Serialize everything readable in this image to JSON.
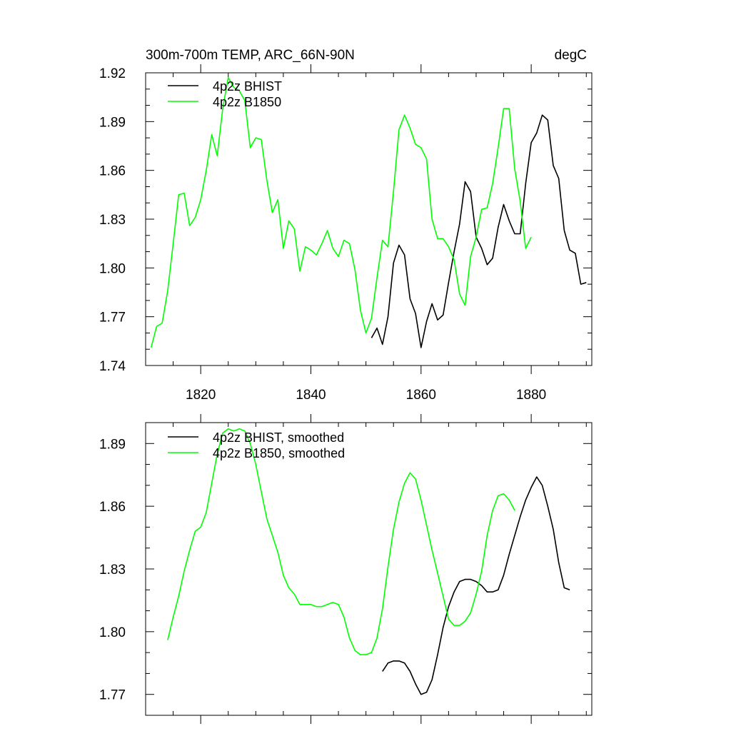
{
  "header": {
    "title": "300m-700m TEMP, ARC_66N-90N",
    "units": "degC"
  },
  "colors": {
    "bhist": "#000000",
    "b1850": "#00ff00",
    "axis": "#000000"
  },
  "chart_data": [
    {
      "type": "line",
      "panel": "top",
      "xlim": [
        1810,
        1891
      ],
      "ylim": [
        1.74,
        1.92
      ],
      "x_ticks": [
        1820,
        1840,
        1860,
        1880
      ],
      "x_tick_labels": [
        "1820",
        "1840",
        "1860",
        "1880"
      ],
      "y_ticks": [
        1.74,
        1.77,
        1.8,
        1.83,
        1.86,
        1.89,
        1.92
      ],
      "y_tick_labels": [
        "1.74",
        "1.77",
        "1.80",
        "1.83",
        "1.86",
        "1.89",
        "1.92"
      ],
      "legend": "top-left",
      "grid": false,
      "series": [
        {
          "name": "4p2z BHIST",
          "color": "#000000",
          "x": [
            1851,
            1852,
            1853,
            1854,
            1855,
            1856,
            1857,
            1858,
            1859,
            1860,
            1861,
            1862,
            1863,
            1864,
            1865,
            1866,
            1867,
            1868,
            1869,
            1870,
            1871,
            1872,
            1873,
            1874,
            1875,
            1876,
            1877,
            1878,
            1879,
            1880,
            1881,
            1882,
            1883,
            1884,
            1885,
            1886,
            1887,
            1888,
            1889,
            1890
          ],
          "y": [
            1.757,
            1.763,
            1.753,
            1.77,
            1.803,
            1.814,
            1.808,
            1.781,
            1.772,
            1.751,
            1.767,
            1.778,
            1.768,
            1.771,
            1.791,
            1.81,
            1.827,
            1.853,
            1.847,
            1.819,
            1.812,
            1.802,
            1.806,
            1.825,
            1.839,
            1.829,
            1.821,
            1.821,
            1.852,
            1.877,
            1.883,
            1.894,
            1.891,
            1.863,
            1.855,
            1.823,
            1.811,
            1.809,
            1.79,
            1.791
          ]
        },
        {
          "name": "4p2z B1850",
          "color": "#00ff00",
          "x": [
            1811,
            1812,
            1813,
            1814,
            1815,
            1816,
            1817,
            1818,
            1819,
            1820,
            1821,
            1822,
            1823,
            1824,
            1825,
            1826,
            1827,
            1828,
            1829,
            1830,
            1831,
            1832,
            1833,
            1834,
            1835,
            1836,
            1837,
            1838,
            1839,
            1840,
            1841,
            1842,
            1843,
            1844,
            1845,
            1846,
            1847,
            1848,
            1849,
            1850,
            1851,
            1852,
            1853,
            1854,
            1855,
            1856,
            1857,
            1858,
            1859,
            1860,
            1861,
            1862,
            1863,
            1864,
            1865,
            1866,
            1867,
            1868,
            1869,
            1870,
            1871,
            1872,
            1873,
            1874,
            1875,
            1876,
            1877,
            1878,
            1879,
            1880
          ],
          "y": [
            1.751,
            1.764,
            1.766,
            1.786,
            1.815,
            1.845,
            1.846,
            1.826,
            1.831,
            1.842,
            1.86,
            1.882,
            1.869,
            1.898,
            1.917,
            1.911,
            1.909,
            1.903,
            1.874,
            1.88,
            1.879,
            1.854,
            1.834,
            1.842,
            1.812,
            1.829,
            1.824,
            1.798,
            1.813,
            1.811,
            1.808,
            1.815,
            1.823,
            1.812,
            1.807,
            1.817,
            1.815,
            1.799,
            1.774,
            1.76,
            1.769,
            1.794,
            1.817,
            1.813,
            1.847,
            1.885,
            1.894,
            1.886,
            1.876,
            1.874,
            1.867,
            1.83,
            1.818,
            1.818,
            1.813,
            1.805,
            1.784,
            1.777,
            1.807,
            1.819,
            1.836,
            1.837,
            1.852,
            1.874,
            1.898,
            1.898,
            1.861,
            1.841,
            1.812,
            1.819
          ]
        }
      ]
    },
    {
      "type": "line",
      "panel": "bottom",
      "xlim": [
        1810,
        1891
      ],
      "ylim": [
        1.76,
        1.9
      ],
      "x_ticks": [
        1820,
        1840,
        1860,
        1880
      ],
      "y_ticks": [
        1.77,
        1.8,
        1.83,
        1.86,
        1.89
      ],
      "y_tick_labels": [
        "1.77",
        "1.80",
        "1.83",
        "1.86",
        "1.89"
      ],
      "legend": "top-left",
      "grid": false,
      "series": [
        {
          "name": "4p2z BHIST, smoothed",
          "color": "#000000",
          "x": [
            1853,
            1854,
            1855,
            1856,
            1857,
            1858,
            1859,
            1860,
            1861,
            1862,
            1863,
            1864,
            1865,
            1866,
            1867,
            1868,
            1869,
            1870,
            1871,
            1872,
            1873,
            1874,
            1875,
            1876,
            1877,
            1878,
            1879,
            1880,
            1881,
            1882,
            1883,
            1884,
            1885,
            1886,
            1887
          ],
          "y": [
            1.781,
            1.785,
            1.786,
            1.786,
            1.785,
            1.781,
            1.775,
            1.77,
            1.771,
            1.777,
            1.789,
            1.802,
            1.812,
            1.819,
            1.824,
            1.825,
            1.825,
            1.824,
            1.822,
            1.819,
            1.819,
            1.82,
            1.827,
            1.837,
            1.846,
            1.855,
            1.863,
            1.869,
            1.874,
            1.87,
            1.86,
            1.849,
            1.833,
            1.821,
            1.82
          ]
        },
        {
          "name": "4p2z B1850, smoothed",
          "color": "#00ff00",
          "x": [
            1814,
            1815,
            1816,
            1817,
            1818,
            1819,
            1820,
            1821,
            1822,
            1823,
            1824,
            1825,
            1826,
            1827,
            1828,
            1829,
            1830,
            1831,
            1832,
            1833,
            1834,
            1835,
            1836,
            1837,
            1838,
            1839,
            1840,
            1841,
            1842,
            1843,
            1844,
            1845,
            1846,
            1847,
            1848,
            1849,
            1850,
            1851,
            1852,
            1853,
            1854,
            1855,
            1856,
            1857,
            1858,
            1859,
            1860,
            1861,
            1862,
            1863,
            1864,
            1865,
            1866,
            1867,
            1868,
            1869,
            1870,
            1871,
            1872,
            1873,
            1874,
            1875,
            1876,
            1877
          ],
          "y": [
            1.796,
            1.807,
            1.817,
            1.829,
            1.839,
            1.848,
            1.85,
            1.857,
            1.871,
            1.885,
            1.895,
            1.897,
            1.896,
            1.897,
            1.896,
            1.89,
            1.88,
            1.867,
            1.854,
            1.846,
            1.838,
            1.827,
            1.821,
            1.818,
            1.813,
            1.813,
            1.813,
            1.812,
            1.812,
            1.813,
            1.814,
            1.813,
            1.807,
            1.797,
            1.791,
            1.789,
            1.789,
            1.79,
            1.797,
            1.811,
            1.831,
            1.849,
            1.862,
            1.871,
            1.876,
            1.873,
            1.863,
            1.851,
            1.839,
            1.828,
            1.817,
            1.806,
            1.803,
            1.803,
            1.805,
            1.809,
            1.818,
            1.829,
            1.846,
            1.858,
            1.865,
            1.866,
            1.863,
            1.858
          ]
        }
      ]
    }
  ]
}
